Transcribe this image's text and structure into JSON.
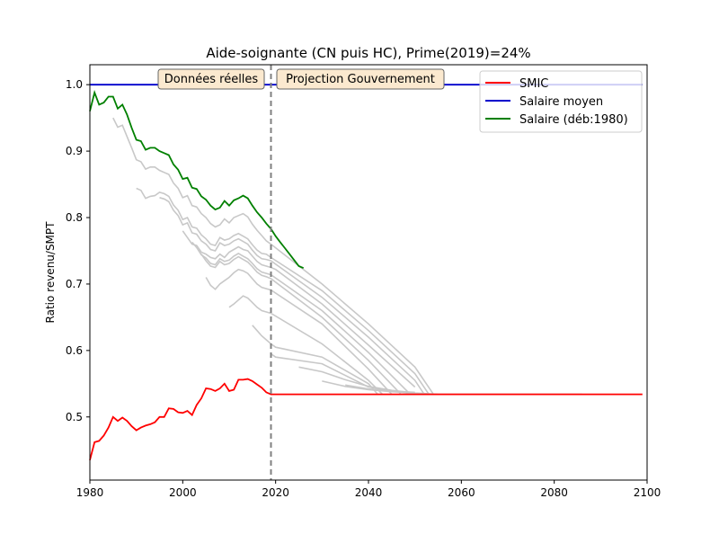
{
  "chart_data": {
    "type": "line",
    "title": "Aide-soignante (CN puis HC), Prime(2019)=24%",
    "xlabel": "",
    "ylabel": "Ratio revenu/SMPT",
    "xlim": [
      1980,
      2100
    ],
    "ylim": [
      0.405,
      1.03
    ],
    "xticks": [
      1980,
      2000,
      2020,
      2040,
      2060,
      2080,
      2100
    ],
    "xtick_labels": [
      "1980",
      "2000",
      "2020",
      "2040",
      "2060",
      "2080",
      "2100"
    ],
    "yticks": [
      0.5,
      0.6,
      0.7,
      0.8,
      0.9,
      1.0
    ],
    "ytick_labels": [
      "0.5",
      "0.6",
      "0.7",
      "0.8",
      "0.9",
      "1.0"
    ],
    "grid": false,
    "legend_position": "upper right",
    "annotations": {
      "left_box": "Données réelles",
      "right_box": "Projection Gouvernement"
    },
    "vline_year": 2019,
    "series": [
      {
        "name": "SMIC",
        "color": "#ff0000",
        "x": [
          1980,
          1981,
          1982,
          1983,
          1984,
          1985,
          1986,
          1987,
          1988,
          1989,
          1990,
          1991,
          1992,
          1993,
          1994,
          1995,
          1996,
          1997,
          1998,
          1999,
          2000,
          2001,
          2002,
          2003,
          2004,
          2005,
          2006,
          2007,
          2008,
          2009,
          2010,
          2011,
          2012,
          2013,
          2014,
          2015,
          2016,
          2017,
          2018,
          2019,
          2020,
          2030,
          2040,
          2050,
          2060,
          2070,
          2080,
          2090,
          2099
        ],
        "y": [
          0.435,
          0.462,
          0.464,
          0.472,
          0.484,
          0.5,
          0.494,
          0.499,
          0.494,
          0.486,
          0.48,
          0.484,
          0.487,
          0.489,
          0.492,
          0.5,
          0.5,
          0.513,
          0.512,
          0.507,
          0.506,
          0.509,
          0.503,
          0.518,
          0.528,
          0.543,
          0.542,
          0.539,
          0.543,
          0.55,
          0.539,
          0.541,
          0.556,
          0.556,
          0.557,
          0.554,
          0.549,
          0.544,
          0.537,
          0.534,
          0.534,
          0.534,
          0.534,
          0.534,
          0.534,
          0.534,
          0.534,
          0.534,
          0.534
        ]
      },
      {
        "name": "Salaire moyen",
        "color": "#0000cc",
        "x": [
          1980,
          2099
        ],
        "y": [
          1.0,
          1.0
        ]
      },
      {
        "name": "Salaire (déb:1980)",
        "color": "#008000",
        "x": [
          1980,
          1981,
          1982,
          1983,
          1984,
          1985,
          1986,
          1987,
          1988,
          1989,
          1990,
          1991,
          1992,
          1993,
          1994,
          1995,
          1996,
          1997,
          1998,
          1999,
          2000,
          2001,
          2002,
          2003,
          2004,
          2005,
          2006,
          2007,
          2008,
          2009,
          2010,
          2011,
          2012,
          2013,
          2014,
          2015,
          2016,
          2017,
          2018,
          2019,
          2020,
          2021,
          2022,
          2023,
          2024,
          2025,
          2026
        ],
        "y": [
          0.96,
          0.988,
          0.97,
          0.973,
          0.982,
          0.982,
          0.964,
          0.97,
          0.955,
          0.935,
          0.917,
          0.915,
          0.902,
          0.905,
          0.905,
          0.9,
          0.897,
          0.894,
          0.88,
          0.872,
          0.858,
          0.86,
          0.845,
          0.843,
          0.832,
          0.827,
          0.818,
          0.812,
          0.815,
          0.825,
          0.818,
          0.826,
          0.829,
          0.833,
          0.829,
          0.818,
          0.808,
          0.8,
          0.791,
          0.783,
          0.772,
          0.763,
          0.754,
          0.745,
          0.736,
          0.727,
          0.724
        ]
      }
    ],
    "gray_series": [
      {
        "x": [
          1985,
          1986,
          1987,
          1988,
          1989,
          1990,
          1991,
          1992,
          1993,
          1994,
          1995,
          1996,
          1997,
          1998,
          1999,
          2000,
          2001,
          2002,
          2003,
          2004,
          2005,
          2006,
          2007,
          2008,
          2009,
          2010,
          2011,
          2012,
          2013,
          2014,
          2015,
          2016,
          2017,
          2018,
          2019,
          2030,
          2040,
          2050,
          2054
        ],
        "y": [
          0.95,
          0.936,
          0.939,
          0.922,
          0.905,
          0.887,
          0.884,
          0.873,
          0.876,
          0.876,
          0.871,
          0.868,
          0.865,
          0.852,
          0.844,
          0.83,
          0.833,
          0.818,
          0.816,
          0.806,
          0.8,
          0.791,
          0.786,
          0.789,
          0.798,
          0.792,
          0.8,
          0.803,
          0.806,
          0.801,
          0.79,
          0.781,
          0.773,
          0.765,
          0.76,
          0.7,
          0.64,
          0.575,
          0.534
        ]
      },
      {
        "x": [
          1990,
          1991,
          1992,
          1993,
          1994,
          1995,
          1996,
          1997,
          1998,
          1999,
          2000,
          2001,
          2002,
          2003,
          2004,
          2005,
          2006,
          2007,
          2008,
          2009,
          2010,
          2011,
          2012,
          2013,
          2014,
          2015,
          2016,
          2017,
          2018,
          2019,
          2030,
          2040,
          2050,
          2053
        ],
        "y": [
          0.844,
          0.841,
          0.829,
          0.832,
          0.833,
          0.838,
          0.836,
          0.832,
          0.819,
          0.811,
          0.797,
          0.8,
          0.786,
          0.784,
          0.774,
          0.768,
          0.76,
          0.758,
          0.77,
          0.766,
          0.768,
          0.773,
          0.776,
          0.772,
          0.768,
          0.759,
          0.751,
          0.746,
          0.745,
          0.74,
          0.69,
          0.63,
          0.565,
          0.534
        ]
      },
      {
        "x": [
          1995,
          1996,
          1997,
          1998,
          1999,
          2000,
          2001,
          2002,
          2003,
          2004,
          2005,
          2006,
          2007,
          2008,
          2009,
          2010,
          2011,
          2012,
          2013,
          2014,
          2015,
          2016,
          2017,
          2018,
          2019,
          2030,
          2040,
          2050,
          2052
        ],
        "y": [
          0.83,
          0.828,
          0.824,
          0.811,
          0.803,
          0.789,
          0.792,
          0.777,
          0.775,
          0.765,
          0.76,
          0.752,
          0.75,
          0.762,
          0.758,
          0.76,
          0.765,
          0.768,
          0.764,
          0.76,
          0.751,
          0.743,
          0.738,
          0.737,
          0.735,
          0.68,
          0.62,
          0.555,
          0.534
        ]
      },
      {
        "x": [
          2000,
          2001,
          2002,
          2003,
          2004,
          2005,
          2006,
          2007,
          2008,
          2009,
          2010,
          2011,
          2012,
          2013,
          2014,
          2015,
          2016,
          2017,
          2018,
          2019,
          2020,
          2030,
          2040,
          2050
        ],
        "y": [
          0.78,
          0.77,
          0.76,
          0.758,
          0.748,
          0.745,
          0.74,
          0.738,
          0.745,
          0.74,
          0.748,
          0.752,
          0.756,
          0.752,
          0.75,
          0.742,
          0.734,
          0.729,
          0.727,
          0.725,
          0.722,
          0.67,
          0.608,
          0.545
        ]
      },
      {
        "x": [
          2002,
          2003,
          2004,
          2005,
          2006,
          2007,
          2008,
          2009,
          2010,
          2011,
          2012,
          2013,
          2014,
          2015,
          2016,
          2017,
          2018,
          2019,
          2030,
          2040,
          2049
        ],
        "y": [
          0.763,
          0.755,
          0.744,
          0.739,
          0.731,
          0.729,
          0.738,
          0.734,
          0.736,
          0.742,
          0.746,
          0.742,
          0.738,
          0.731,
          0.723,
          0.718,
          0.716,
          0.714,
          0.66,
          0.597,
          0.534
        ]
      },
      {
        "x": [
          2004,
          2005,
          2006,
          2007,
          2008,
          2009,
          2010,
          2011,
          2012,
          2013,
          2014,
          2015,
          2016,
          2017,
          2018,
          2019,
          2030,
          2040,
          2047
        ],
        "y": [
          0.745,
          0.735,
          0.727,
          0.725,
          0.734,
          0.729,
          0.731,
          0.737,
          0.741,
          0.737,
          0.733,
          0.726,
          0.718,
          0.713,
          0.711,
          0.708,
          0.65,
          0.585,
          0.534
        ]
      },
      {
        "x": [
          2005,
          2006,
          2007,
          2008,
          2009,
          2010,
          2011,
          2012,
          2013,
          2014,
          2015,
          2016,
          2017,
          2018,
          2019,
          2030,
          2040,
          2045
        ],
        "y": [
          0.71,
          0.698,
          0.692,
          0.7,
          0.705,
          0.71,
          0.717,
          0.722,
          0.72,
          0.716,
          0.708,
          0.7,
          0.695,
          0.693,
          0.691,
          0.64,
          0.572,
          0.534
        ]
      },
      {
        "x": [
          2010,
          2011,
          2012,
          2013,
          2014,
          2015,
          2016,
          2017,
          2018,
          2019,
          2030,
          2040,
          2043
        ],
        "y": [
          0.665,
          0.67,
          0.676,
          0.682,
          0.679,
          0.672,
          0.665,
          0.66,
          0.658,
          0.656,
          0.61,
          0.555,
          0.534
        ]
      },
      {
        "x": [
          2015,
          2016,
          2017,
          2018,
          2019,
          2020,
          2030,
          2040,
          2042
        ],
        "y": [
          0.638,
          0.63,
          0.622,
          0.616,
          0.61,
          0.605,
          0.59,
          0.55,
          0.534
        ]
      },
      {
        "x": [
          2019,
          2020,
          2030,
          2040,
          2050
        ],
        "y": [
          0.595,
          0.59,
          0.58,
          0.545,
          0.534
        ]
      },
      {
        "x": [
          2025,
          2030,
          2035,
          2040,
          2045,
          2050,
          2055
        ],
        "y": [
          0.575,
          0.568,
          0.556,
          0.546,
          0.54,
          0.536,
          0.534
        ]
      },
      {
        "x": [
          2030,
          2035,
          2040,
          2045,
          2050
        ],
        "y": [
          0.554,
          0.546,
          0.541,
          0.538,
          0.536
        ]
      },
      {
        "x": [
          2035,
          2040,
          2045,
          2050
        ],
        "y": [
          0.548,
          0.542,
          0.539,
          0.537
        ]
      },
      {
        "x": [
          2048,
          2050,
          2060,
          2070,
          2080,
          2086
        ],
        "y": [
          0.534,
          0.534,
          0.534,
          0.534,
          0.534,
          0.534
        ]
      }
    ]
  }
}
